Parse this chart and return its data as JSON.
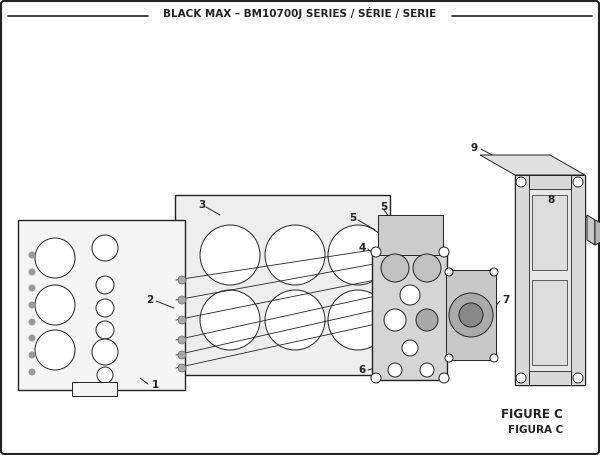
{
  "title": "BLACK MAX – BM10700J SERIES / SÉRIE / SERIE",
  "figure_label": "FIGURE C",
  "figura_label": "FIGURA C",
  "bg_color": "#ffffff",
  "line_color": "#222222",
  "title_fontsize": 7.5,
  "annotation_fontsize": 7.5,
  "figure_label_fontsize": 8.5
}
